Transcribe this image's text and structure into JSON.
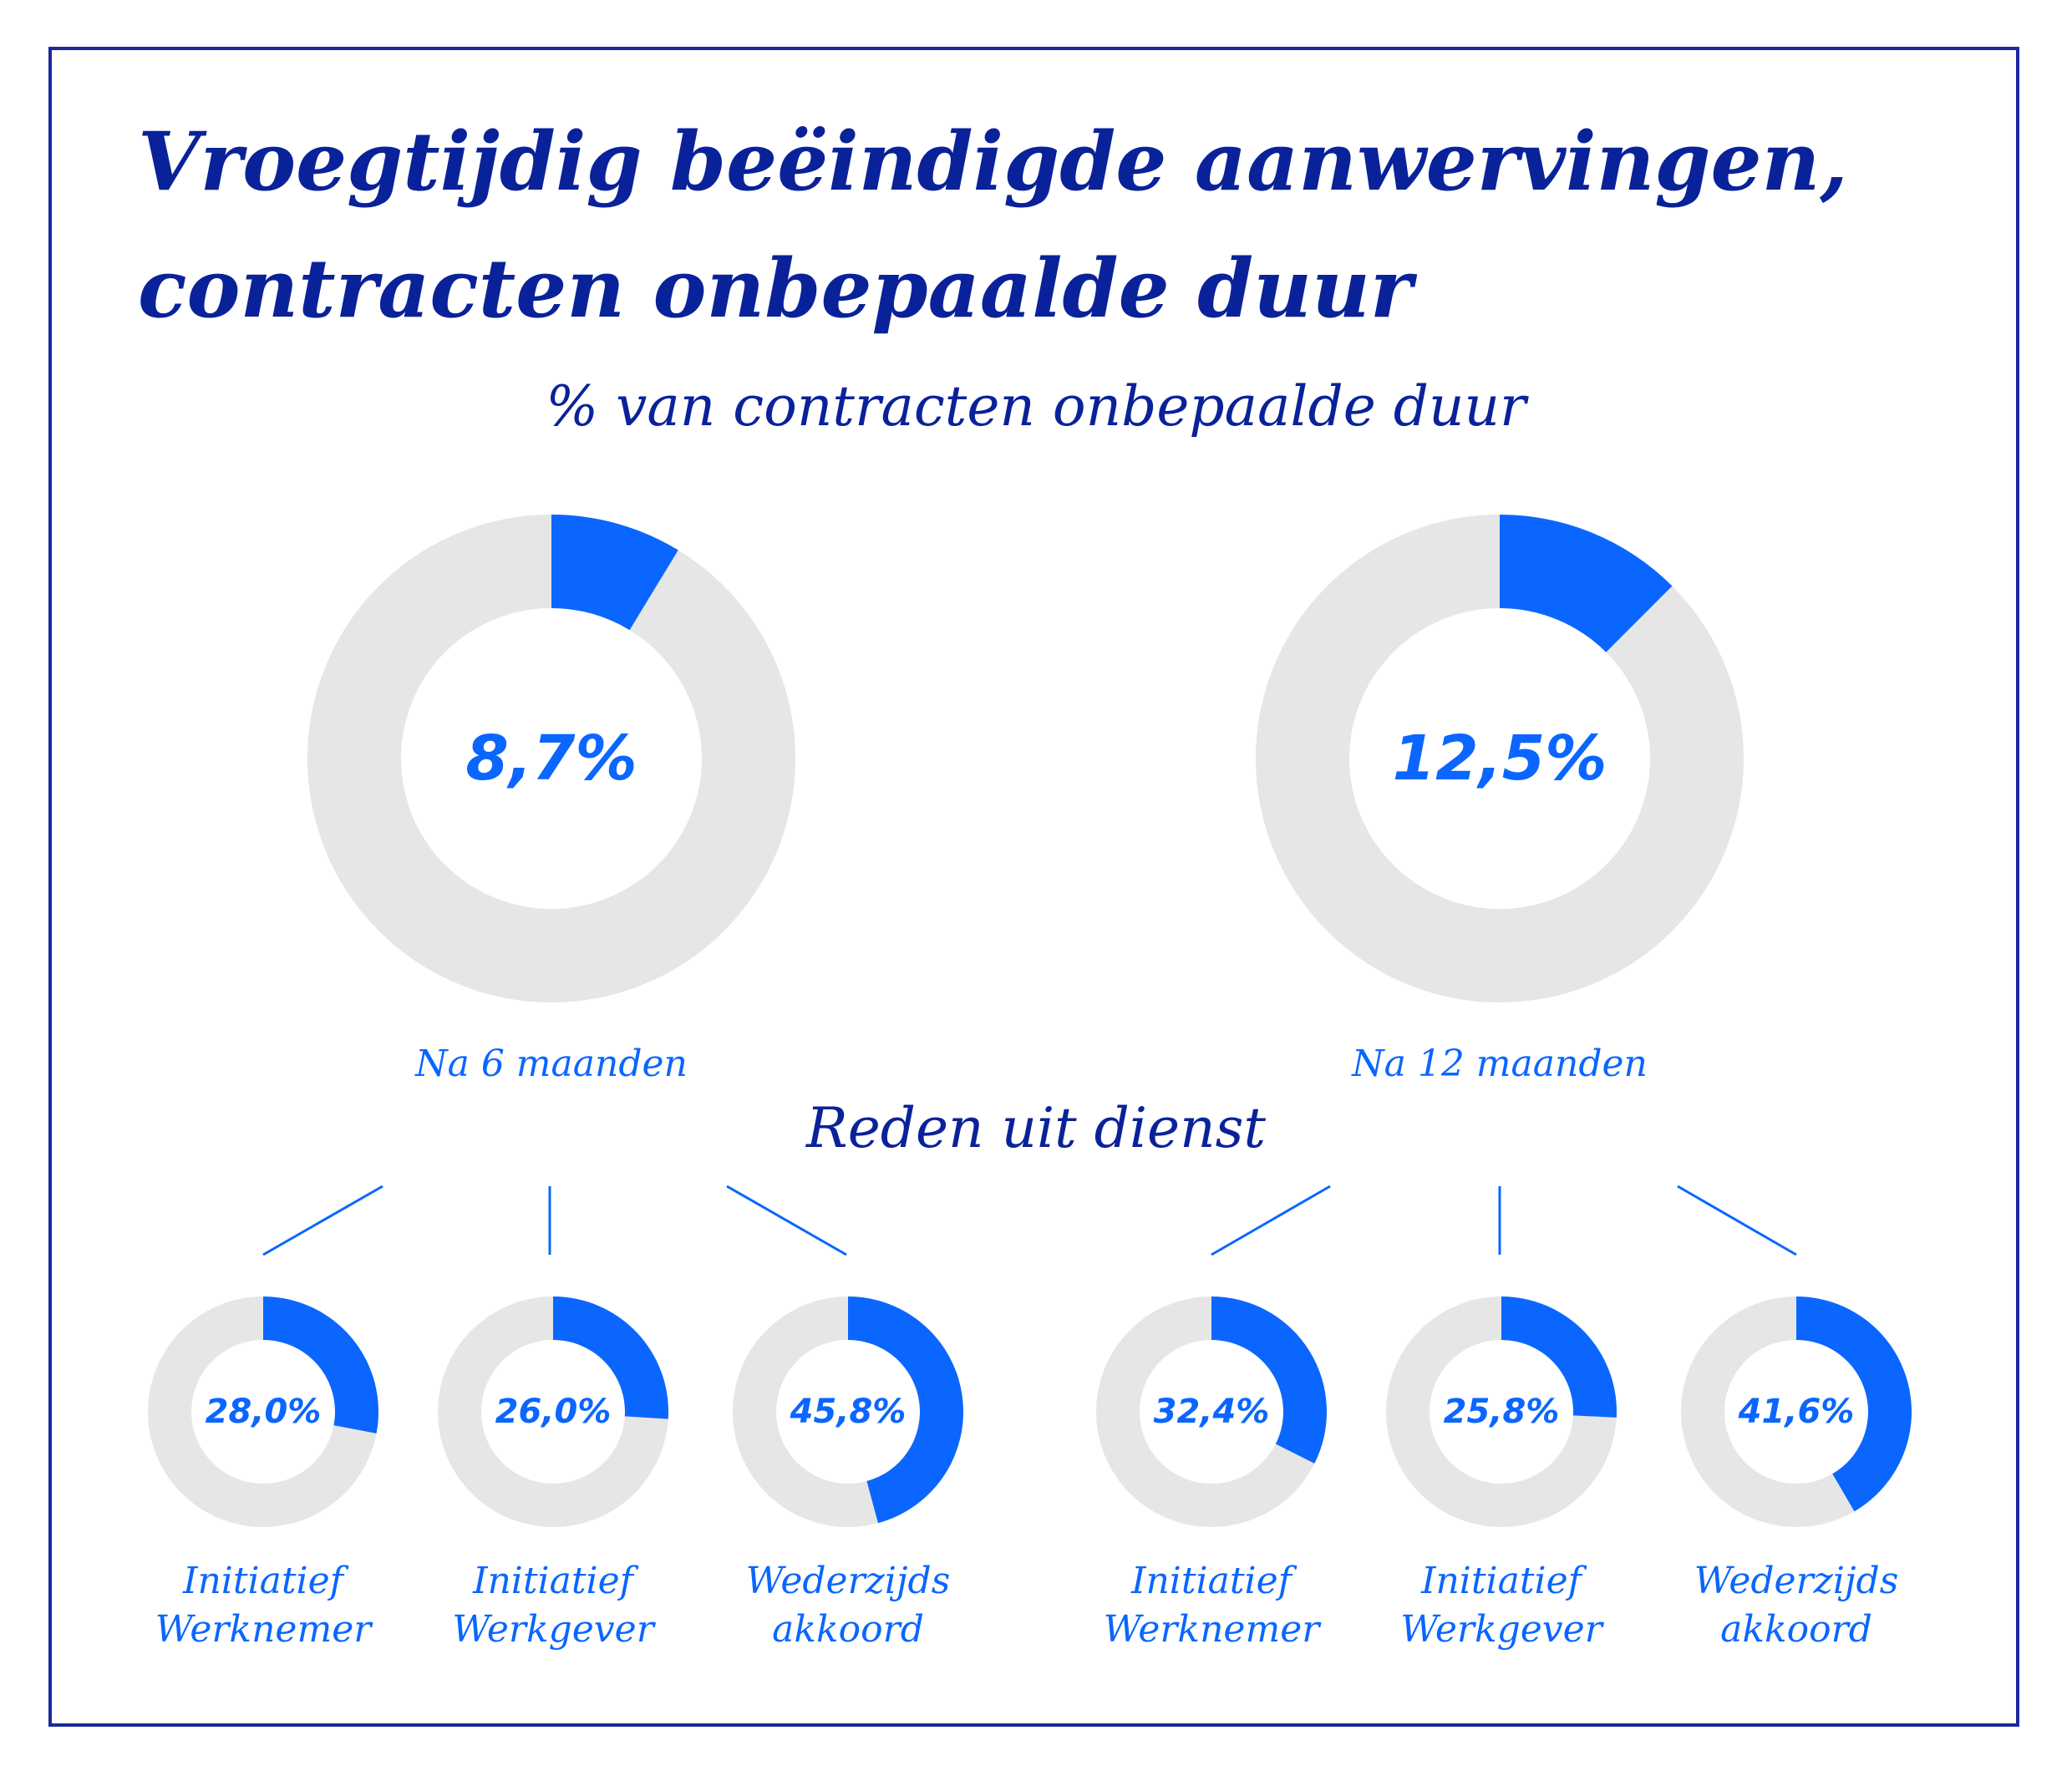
{
  "title_line1": "Vroegtijdig beëindigde aanwervingen,",
  "title_line2": "contracten onbepaalde duur",
  "subtitle": "% van contracten onbepaalde duur",
  "reasons_title": "Reden uit dienst",
  "colors": {
    "accent": "#0A66FF",
    "track": "#E6E6E6",
    "navy": "#0A2299"
  },
  "chart_data": [
    {
      "type": "pie",
      "variant": "donut",
      "slices": [
        {
          "label": "Na 6 maanden",
          "value": 8.7,
          "display": "8,7%"
        },
        {
          "label": "Na 12 maanden",
          "value": 12.5,
          "display": "12,5%"
        }
      ]
    },
    {
      "type": "pie",
      "variant": "donut",
      "group": "Na 6 maanden",
      "slices": [
        {
          "label_line1": "Initiatief",
          "label_line2": "Werknemer",
          "value": 28.0,
          "display": "28,0%"
        },
        {
          "label_line1": "Initiatief",
          "label_line2": "Werkgever",
          "value": 26.0,
          "display": "26,0%"
        },
        {
          "label_line1": "Wederzijds",
          "label_line2": "akkoord",
          "value": 45.8,
          "display": "45,8%"
        }
      ]
    },
    {
      "type": "pie",
      "variant": "donut",
      "group": "Na 12 maanden",
      "slices": [
        {
          "label_line1": "Initiatief",
          "label_line2": "Werknemer",
          "value": 32.4,
          "display": "32,4%"
        },
        {
          "label_line1": "Initiatief",
          "label_line2": "Werkgever",
          "value": 25.8,
          "display": "25,8%"
        },
        {
          "label_line1": "Wederzijds",
          "label_line2": "akkoord",
          "value": 41.6,
          "display": "41,6%"
        }
      ]
    }
  ]
}
